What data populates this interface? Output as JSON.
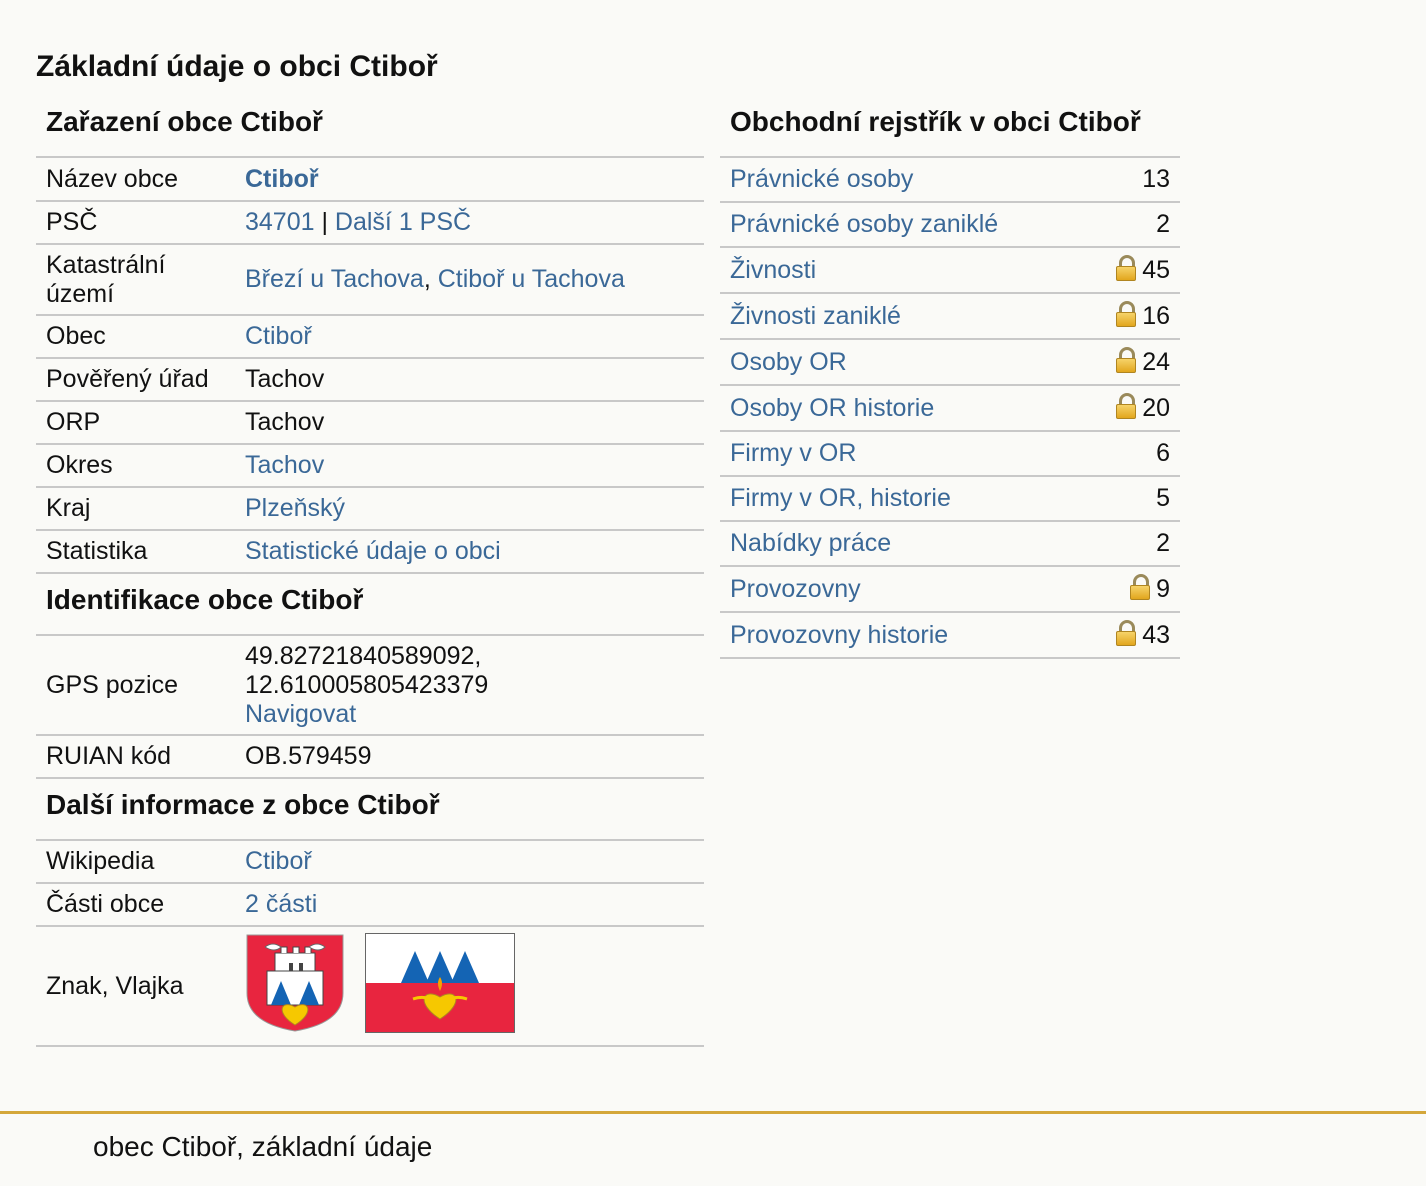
{
  "page": {
    "title": "Základní údaje o obci Ctiboř"
  },
  "zarazeni": {
    "title": "Zařazení obce Ctiboř",
    "nazev_label": "Název obce",
    "nazev_value": "Ctiboř",
    "psc_label": "PSČ",
    "psc_value": "34701",
    "psc_sep": " | ",
    "psc_more": "Další 1 PSČ",
    "katastr_label": "Katastrální území",
    "katastr_1": "Březí u Tachova",
    "katastr_sep": ", ",
    "katastr_2": "Ctiboř u Tachova",
    "obec_label": "Obec",
    "obec_value": "Ctiboř",
    "urad_label": "Pověřený úřad",
    "urad_value": "Tachov",
    "orp_label": "ORP",
    "orp_value": "Tachov",
    "okres_label": "Okres",
    "okres_value": "Tachov",
    "kraj_label": "Kraj",
    "kraj_value": "Plzeňský",
    "stat_label": "Statistika",
    "stat_value": "Statistické údaje o obci"
  },
  "identifikace": {
    "title": "Identifikace obce Ctiboř",
    "gps_label": "GPS pozice",
    "gps_lat": "49.82721840589092,",
    "gps_lon": "12.610005805423379",
    "gps_nav": "Navigovat",
    "ruian_label": "RUIAN kód",
    "ruian_value": "OB.579459"
  },
  "dalsi": {
    "title": "Další informace z obce Ctiboř",
    "wiki_label": "Wikipedia",
    "wiki_value": "Ctiboř",
    "casti_label": "Části obce",
    "casti_value": "2 části",
    "znak_label": "Znak, Vlajka"
  },
  "rejstrik": {
    "title": "Obchodní rejstřík v obci Ctiboř",
    "rows": [
      {
        "label": "Právnické osoby",
        "value": "13",
        "locked": false
      },
      {
        "label": "Právnické osoby zaniklé",
        "value": "2",
        "locked": false
      },
      {
        "label": "Živnosti",
        "value": "45",
        "locked": true
      },
      {
        "label": "Živnosti zaniklé",
        "value": "16",
        "locked": true
      },
      {
        "label": "Osoby OR",
        "value": "24",
        "locked": true
      },
      {
        "label": "Osoby OR historie",
        "value": "20",
        "locked": true
      },
      {
        "label": "Firmy v OR",
        "value": "6",
        "locked": false
      },
      {
        "label": "Firmy v OR, historie",
        "value": "5",
        "locked": false
      },
      {
        "label": "Nabídky práce",
        "value": "2",
        "locked": false
      },
      {
        "label": "Provozovny",
        "value": "9",
        "locked": true
      },
      {
        "label": "Provozovny historie",
        "value": "43",
        "locked": true
      }
    ]
  },
  "footer": {
    "text": "obec Ctiboř, základní údaje"
  },
  "colors": {
    "link": "#3a6897",
    "accent_line": "#d4a73a",
    "flag_red": "#e8253f",
    "flag_blue": "#1464b4",
    "heart_yellow": "#f6c800"
  }
}
